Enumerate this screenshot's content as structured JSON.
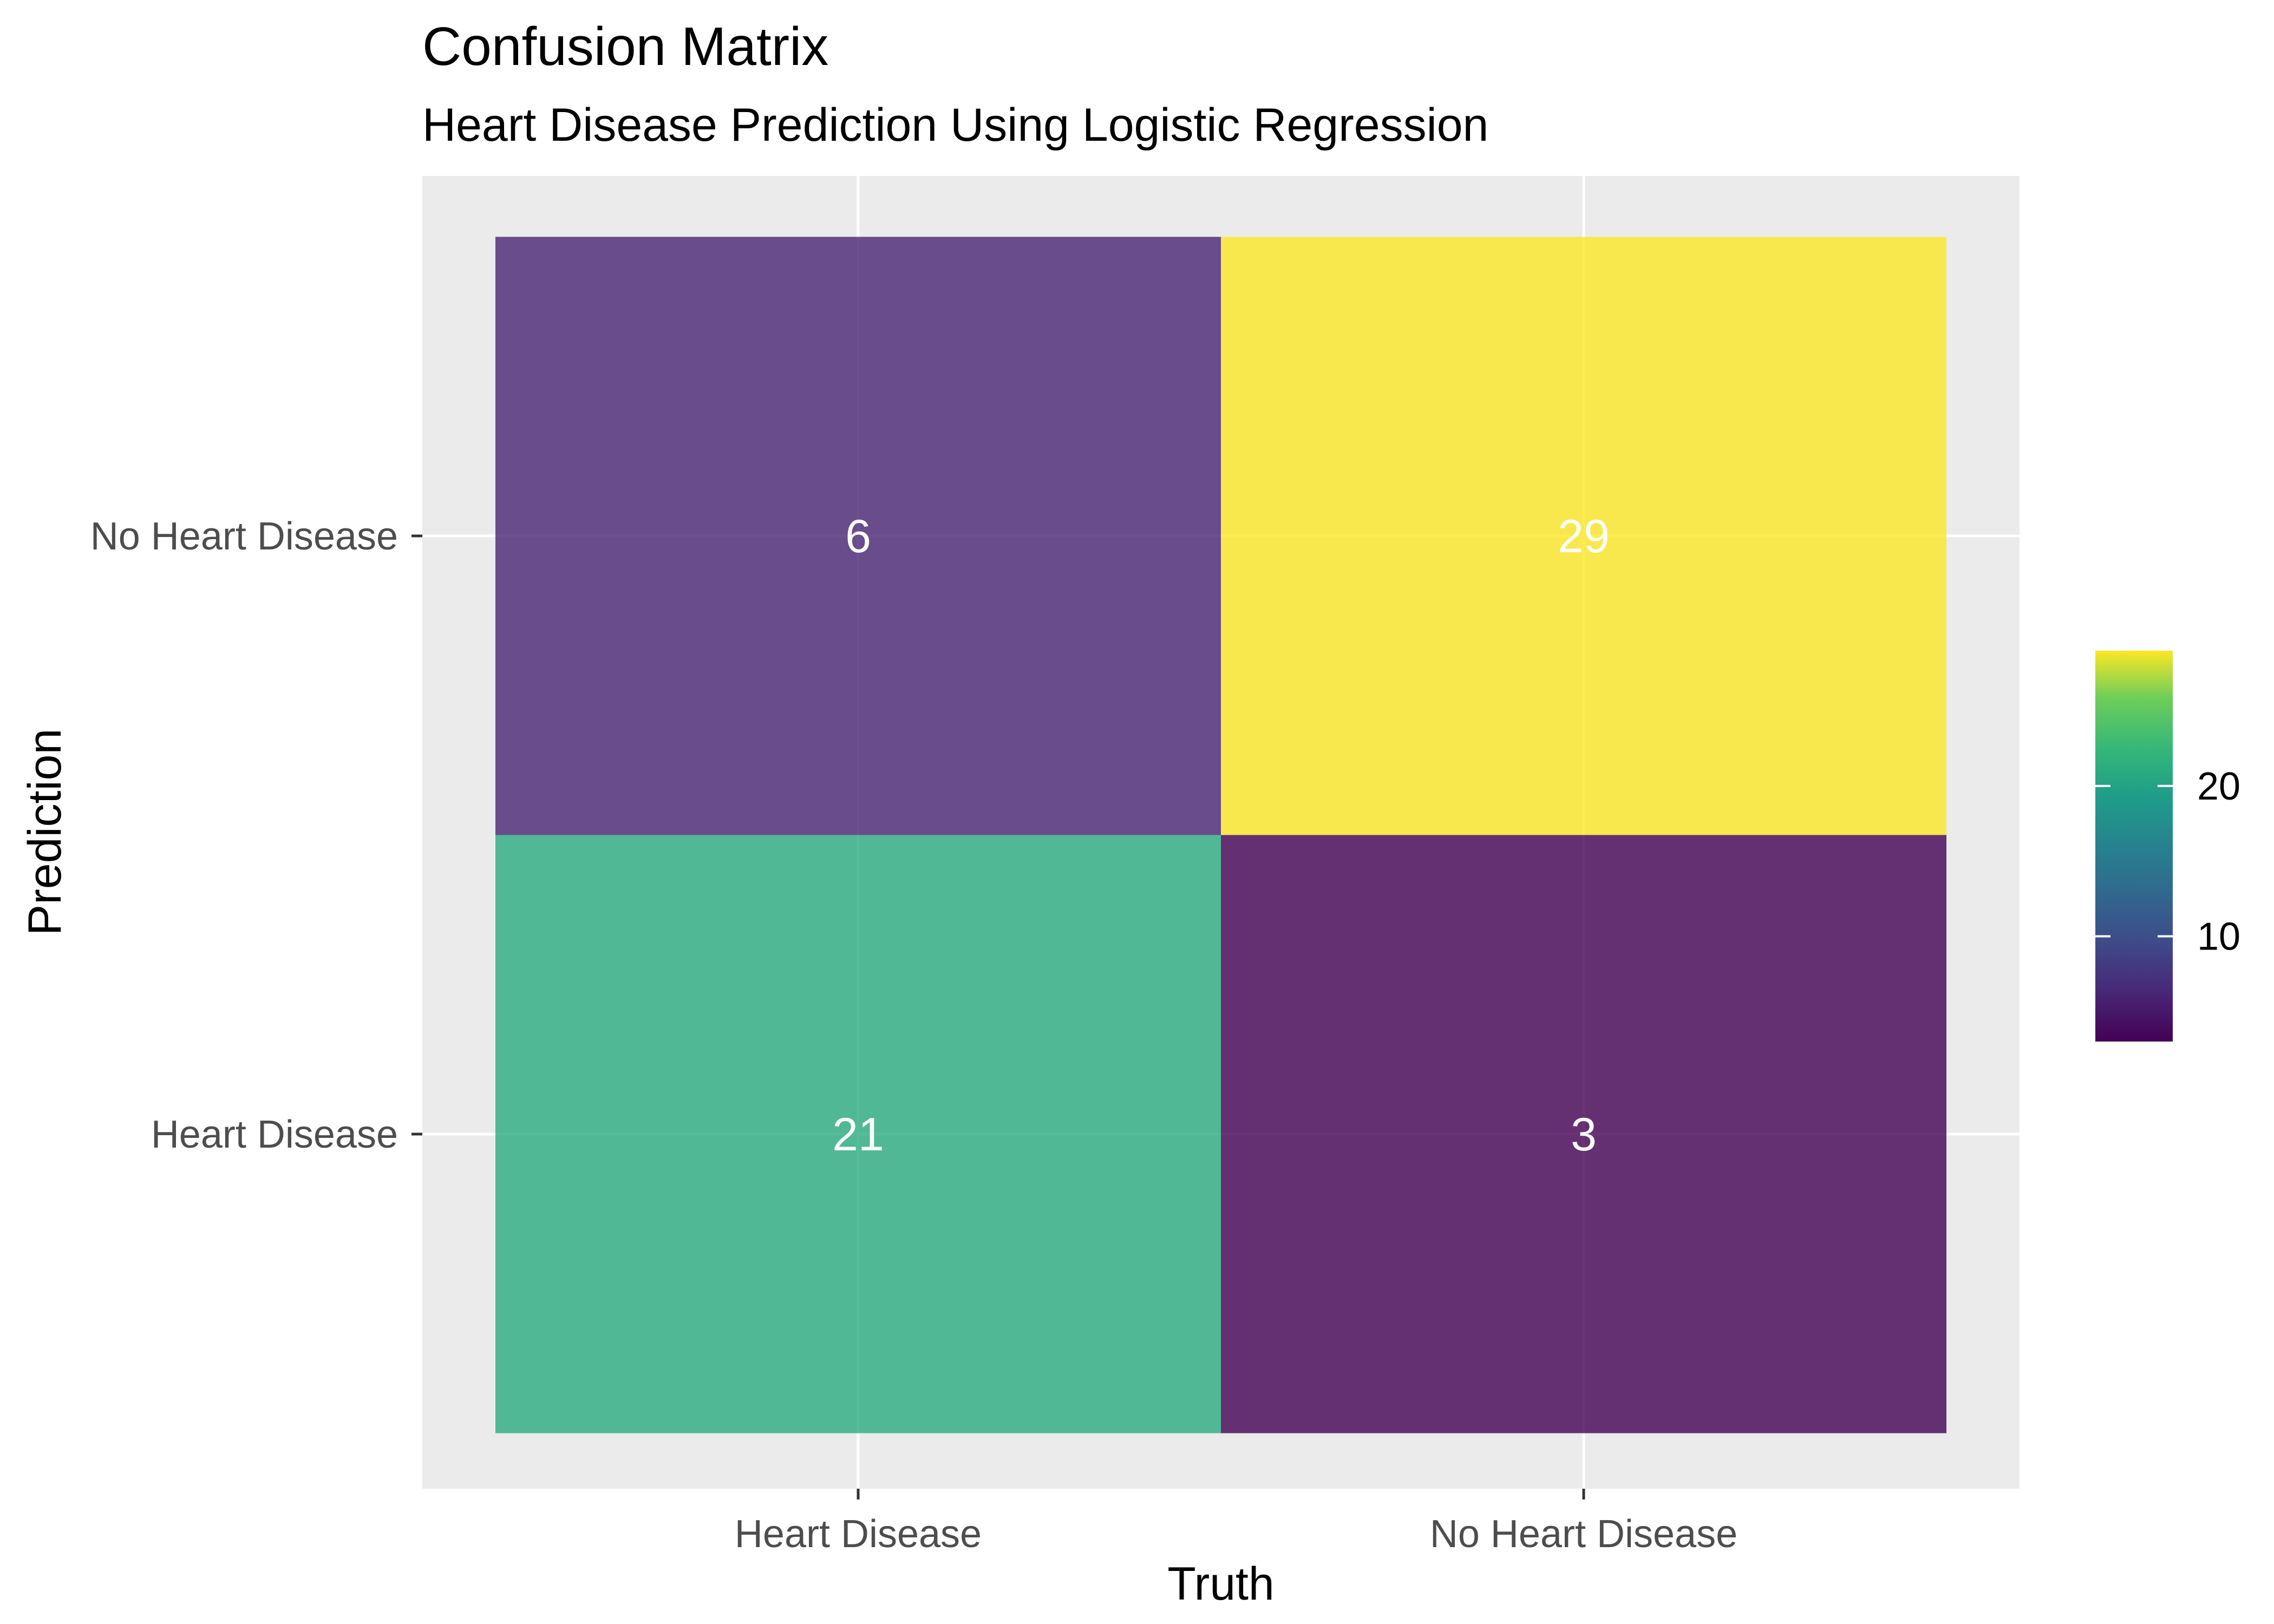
{
  "chart_data": {
    "type": "heatmap",
    "title": "Confusion Matrix",
    "subtitle": "Heart Disease Prediction Using Logistic Regression",
    "xlabel": "Truth",
    "ylabel": "Prediction",
    "x_categories": [
      "Heart Disease",
      "No Heart Disease"
    ],
    "y_categories": [
      "Heart Disease",
      "No Heart Disease"
    ],
    "cells": [
      {
        "truth": "Heart Disease",
        "prediction": "No Heart Disease",
        "value": 6,
        "label": "6"
      },
      {
        "truth": "No Heart Disease",
        "prediction": "No Heart Disease",
        "value": 29,
        "label": "29"
      },
      {
        "truth": "Heart Disease",
        "prediction": "Heart Disease",
        "value": 21,
        "label": "21"
      },
      {
        "truth": "No Heart Disease",
        "prediction": "Heart Disease",
        "value": 3,
        "label": "3"
      }
    ],
    "legend": {
      "placement": "right",
      "range": [
        3,
        29
      ],
      "ticks": [
        10,
        20
      ],
      "tick_labels": [
        "10",
        "20"
      ],
      "colormap": "viridis"
    },
    "grid": true,
    "panel_background": "#ebebeb",
    "tile_alpha": 0.8
  }
}
